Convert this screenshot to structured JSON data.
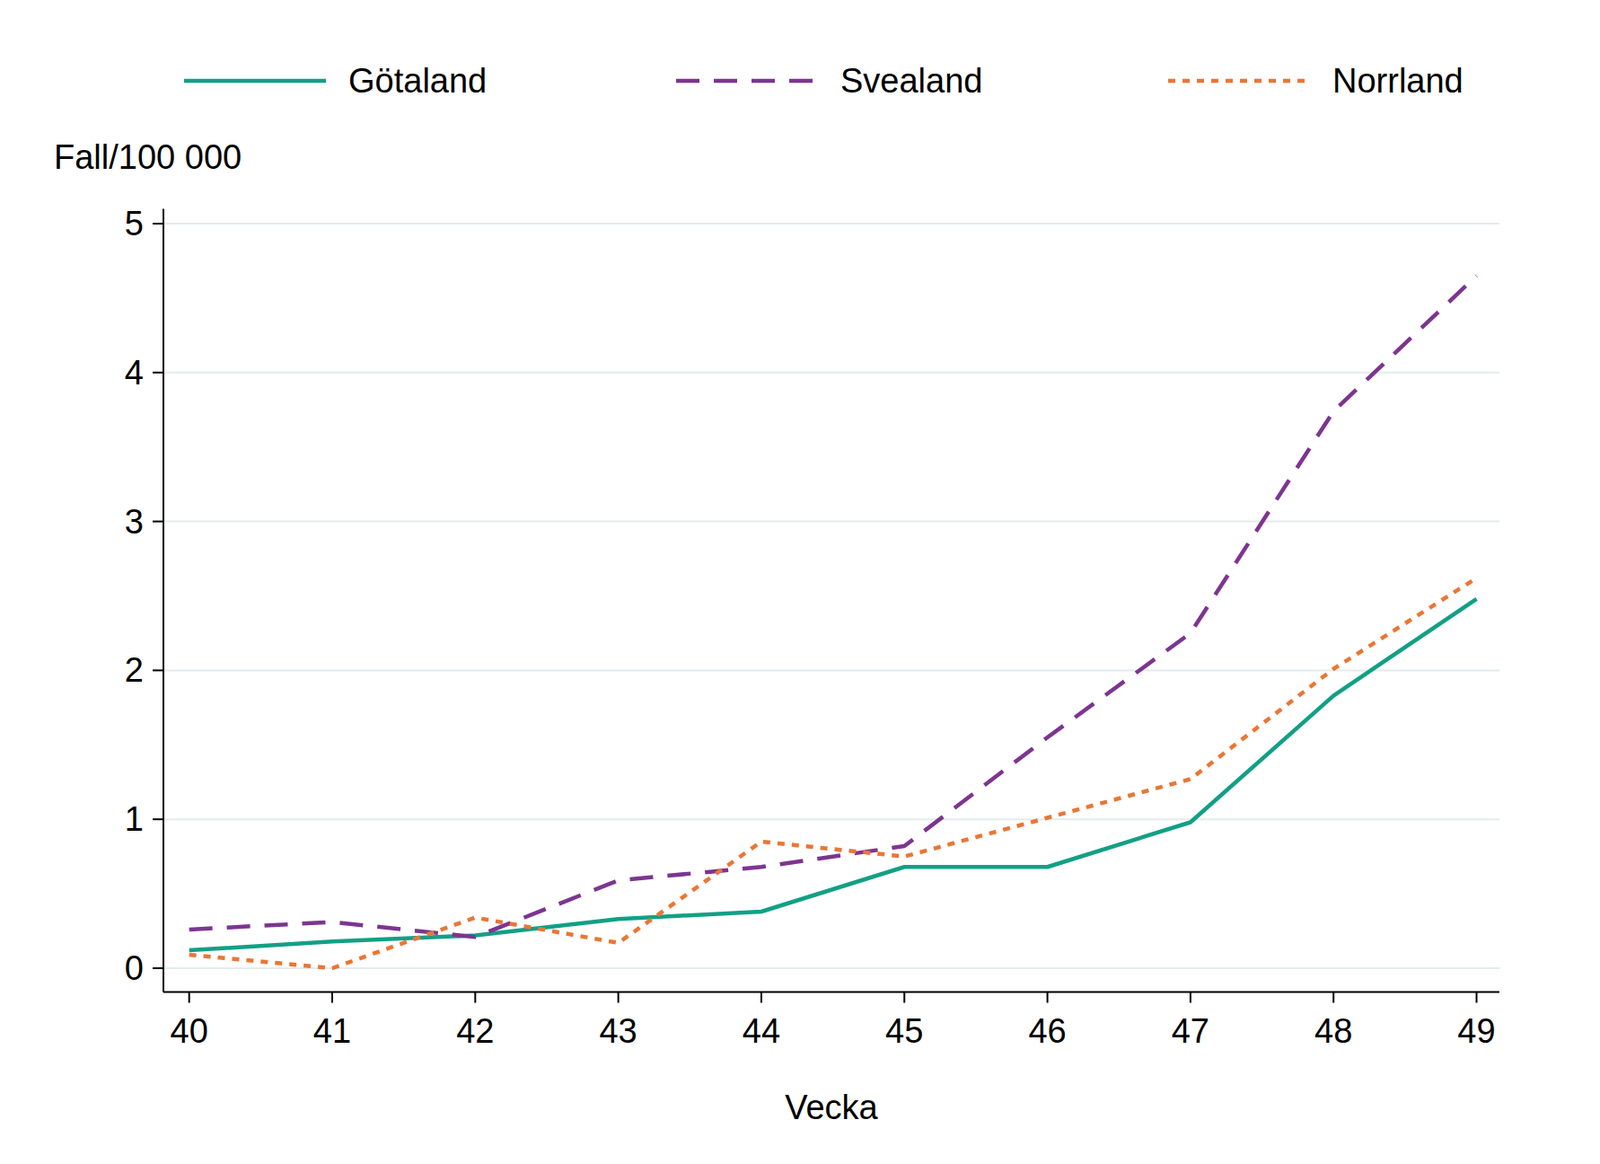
{
  "chart_data": {
    "type": "line",
    "x": [
      40,
      41,
      42,
      43,
      44,
      45,
      46,
      47,
      48,
      49
    ],
    "xlabel": "Vecka",
    "ylabel": "Fall/100 000",
    "series": [
      {
        "name": "Götaland",
        "color": "#12a085",
        "line_style": "solid",
        "values": [
          0.12,
          0.18,
          0.22,
          0.33,
          0.38,
          0.68,
          0.68,
          0.98,
          1.83,
          2.48
        ]
      },
      {
        "name": "Svealand",
        "color": "#7d3590",
        "line_style": "dashed",
        "values": [
          0.26,
          0.31,
          0.21,
          0.59,
          0.68,
          0.82,
          1.55,
          2.25,
          3.74,
          4.65
        ]
      },
      {
        "name": "Norrland",
        "color": "#ea7634",
        "line_style": "dotted",
        "values": [
          0.09,
          0.0,
          0.34,
          0.17,
          0.85,
          0.75,
          1.01,
          1.27,
          2.01,
          2.62
        ]
      }
    ],
    "xlim": [
      39.82,
      49.16
    ],
    "ylim": [
      -0.16,
      5.1
    ],
    "xticks": [
      40,
      41,
      42,
      43,
      44,
      45,
      46,
      47,
      48,
      49
    ],
    "yticks": [
      0,
      1,
      2,
      3,
      4,
      5
    ],
    "grid": true,
    "legend": "top"
  }
}
